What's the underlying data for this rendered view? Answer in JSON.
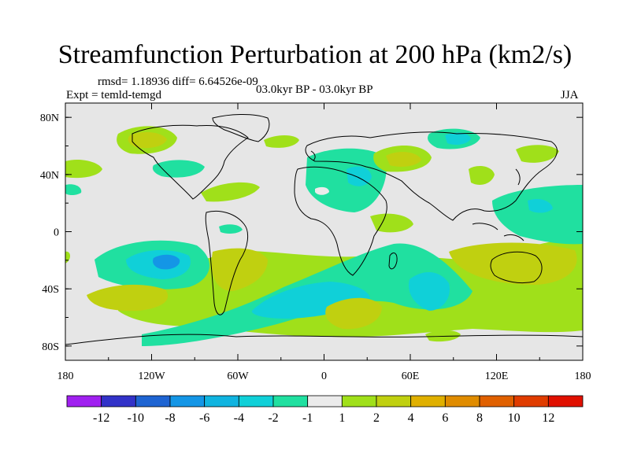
{
  "title": "Streamfunction Perturbation at 200 hPa (km2/s)",
  "rmsd_line": "rmsd= 1.18936 diff= 6.64526e-09",
  "expt_line": "Expt = temld-temgd",
  "period_line": "03.0kyr BP - 03.0kyr BP",
  "season": "JJA",
  "map": {
    "y_ticks": [
      "80N",
      "40N",
      "0",
      "40S",
      "80S"
    ],
    "x_ticks": [
      "180",
      "120W",
      "60W",
      "0",
      "60E",
      "120E",
      "180"
    ],
    "lon_range": [
      -180,
      180
    ],
    "lat_range": [
      -90,
      90
    ]
  },
  "colorbar": {
    "labels": [
      "-12",
      "-10",
      "-8",
      "-6",
      "-4",
      "-2",
      "-1",
      "1",
      "2",
      "4",
      "6",
      "8",
      "10",
      "12"
    ],
    "colors": [
      "#a020f0",
      "#3232c8",
      "#1e64d2",
      "#1496e6",
      "#10b4e0",
      "#10d0d8",
      "#20e0a0",
      "#ebebeb",
      "#a0e01a",
      "#c0d010",
      "#e0b000",
      "#e08c00",
      "#e06000",
      "#e03c00",
      "#e01000"
    ]
  }
}
